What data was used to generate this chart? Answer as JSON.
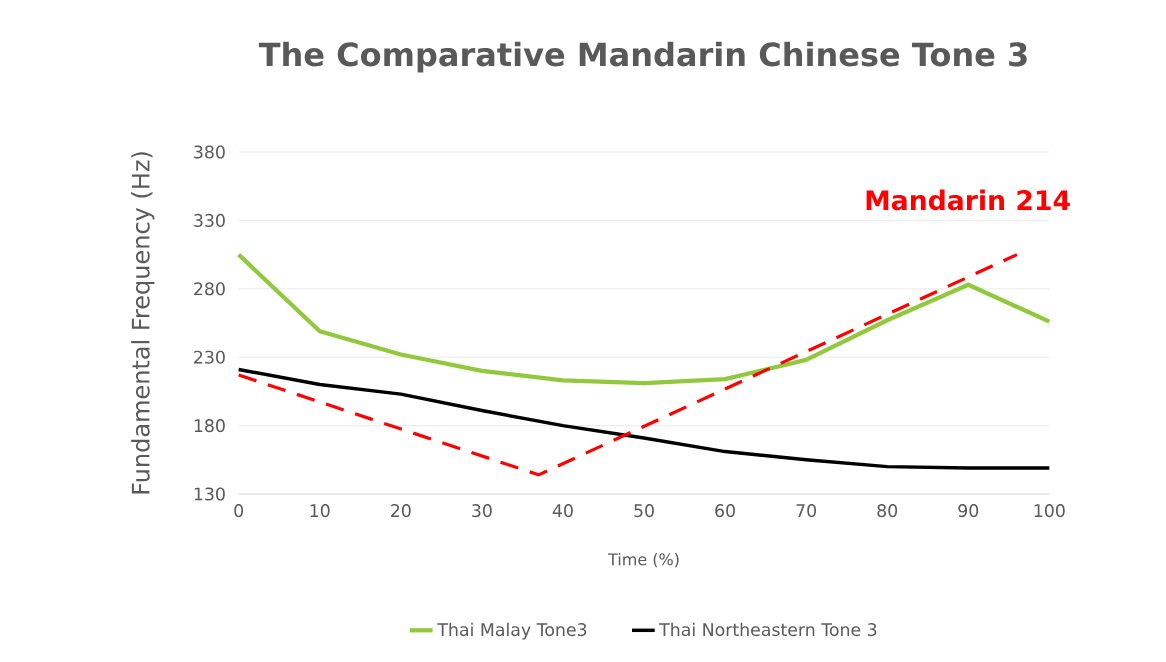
{
  "chart_data": {
    "type": "line",
    "title": "The Comparative Mandarin Chinese Tone 3",
    "xlabel": "Time (%)",
    "ylabel": "Fundamental Frequency (Hz)",
    "x": [
      0,
      10,
      20,
      30,
      40,
      50,
      60,
      70,
      80,
      90,
      100
    ],
    "series": [
      {
        "name": "Thai Malay Tone3",
        "color": "#92c83e",
        "values": [
          305,
          249,
          232,
          220,
          213,
          211,
          214,
          228,
          257,
          283,
          256
        ]
      },
      {
        "name": "Thai Northeastern Tone 3",
        "color": "#000000",
        "values": [
          221,
          210,
          203,
          191,
          180,
          171,
          161,
          155,
          150,
          149,
          149
        ]
      },
      {
        "name": "Mandarin 214",
        "color": "#ff0000",
        "line_style": "dashed",
        "x": [
          0,
          37,
          96
        ],
        "values": [
          217,
          144,
          305
        ]
      }
    ],
    "xlim": [
      0,
      100
    ],
    "ylim": [
      130,
      380
    ],
    "xticks": [
      0,
      10,
      20,
      30,
      40,
      50,
      60,
      70,
      80,
      90,
      100
    ],
    "yticks": [
      130,
      180,
      230,
      280,
      330,
      380
    ],
    "grid": "y",
    "legend": "bottom"
  }
}
